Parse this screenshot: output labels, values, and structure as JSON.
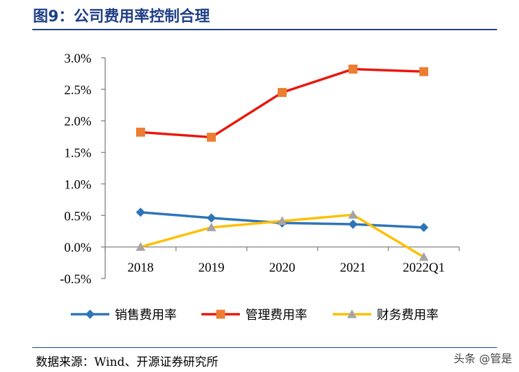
{
  "figure": {
    "title": "图9：公司费用率控制合理",
    "source": "数据来源：Wind、开源证券研究所",
    "watermark": "头条 @管是"
  },
  "chart_data": {
    "type": "line",
    "title": "",
    "xlabel": "",
    "ylabel": "",
    "categories": [
      "2018",
      "2019",
      "2020",
      "2021",
      "2022Q1"
    ],
    "ylim": [
      -0.5,
      3.0
    ],
    "ytick_values": [
      -0.5,
      0.0,
      0.5,
      1.0,
      1.5,
      2.0,
      2.5,
      3.0
    ],
    "ytick_labels": [
      "-0.5%",
      "0.0%",
      "0.5%",
      "1.0%",
      "1.5%",
      "2.0%",
      "2.5%",
      "3.0%"
    ],
    "unit": "%",
    "grid": false,
    "legend_position": "bottom",
    "series": [
      {
        "name": "销售费用率",
        "values": [
          0.55,
          0.46,
          0.38,
          0.36,
          0.31
        ],
        "color": "#2e75b6",
        "marker": "diamond"
      },
      {
        "name": "管理费用率",
        "values": [
          1.82,
          1.74,
          2.45,
          2.82,
          2.78
        ],
        "color": "#e8180c",
        "marker": "square",
        "marker_color": "#ed7d31"
      },
      {
        "name": "财务费用率",
        "values": [
          0.0,
          0.31,
          0.41,
          0.51,
          -0.16
        ],
        "color": "#ffc000",
        "marker": "triangle",
        "marker_color": "#a5a5a5"
      }
    ]
  }
}
